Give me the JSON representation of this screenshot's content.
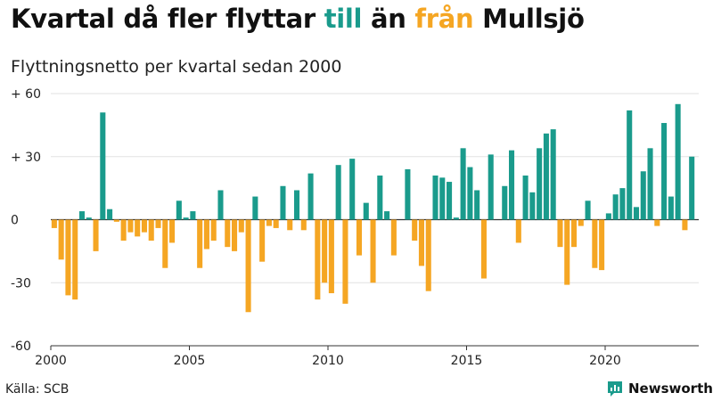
{
  "title": {
    "part1": "Kvartal då fler flyttar ",
    "word_in": "till",
    "part2": " än ",
    "word_out": "från",
    "part3": " Mullsjö"
  },
  "subtitle": "Flyttningsnetto per kvartal sedan 2000",
  "source": "Källa: SCB",
  "brand": "Newsworthy",
  "colors": {
    "positive": "#1a9b8c",
    "negative": "#f5a623",
    "grid": "#e2e2e2",
    "axis": "#333333"
  },
  "chart_data": {
    "type": "bar",
    "title": "Kvartal då fler flyttar till än från Mullsjö",
    "subtitle": "Flyttningsnetto per kvartal sedan 2000",
    "ylim": [
      -60,
      60
    ],
    "y_ticks": [
      60,
      30,
      0,
      -30,
      -60
    ],
    "y_tick_labels": [
      "+ 60",
      "+ 30",
      "0",
      "-30",
      "-60"
    ],
    "x_ticks": [
      2000,
      2005,
      2010,
      2015,
      2020
    ],
    "x_tick_labels": [
      "2000",
      "2005",
      "2010",
      "2015",
      "2020"
    ],
    "start_year": 2000,
    "grid": true,
    "values": [
      -4,
      -19,
      -36,
      -38,
      4,
      1,
      -15,
      51,
      5,
      -1,
      -10,
      -6,
      -8,
      -6,
      -10,
      -4,
      -23,
      -11,
      9,
      1,
      4,
      -23,
      -14,
      -10,
      14,
      -13,
      -15,
      -6,
      -44,
      11,
      -20,
      -3,
      -4,
      16,
      -5,
      14,
      -5,
      22,
      -38,
      -30,
      -35,
      26,
      -40,
      29,
      -17,
      8,
      -30,
      21,
      4,
      -17,
      0,
      24,
      -10,
      -22,
      -34,
      21,
      20,
      18,
      1,
      34,
      25,
      14,
      -28,
      31,
      0,
      16,
      33,
      -11,
      21,
      13,
      34,
      41,
      43,
      -13,
      -31,
      -13,
      -3,
      9,
      -23,
      -24,
      3,
      12,
      15,
      52,
      6,
      23,
      34,
      -3,
      46,
      11,
      55,
      -5,
      30
    ]
  }
}
